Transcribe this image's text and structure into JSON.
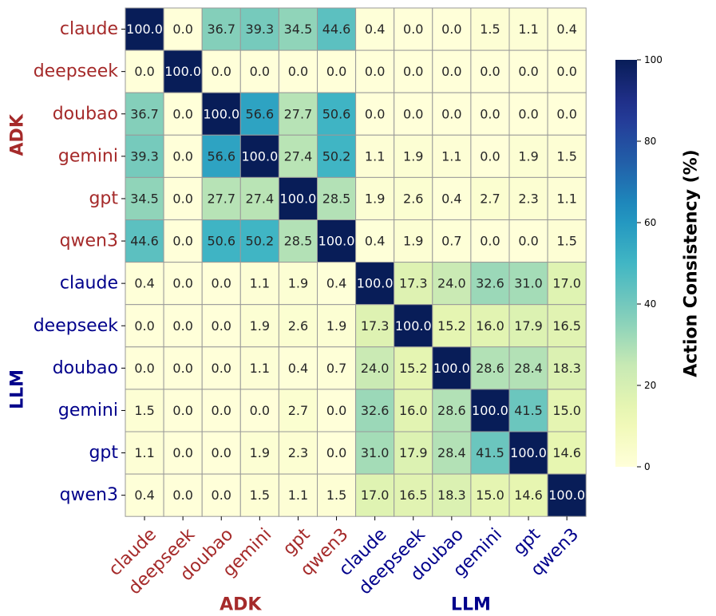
{
  "chart_data": {
    "type": "heatmap",
    "title": "",
    "row_labels": [
      "claude",
      "deepseek",
      "doubao",
      "gemini",
      "gpt",
      "qwen3",
      "claude",
      "deepseek",
      "doubao",
      "gemini",
      "gpt",
      "qwen3"
    ],
    "col_labels": [
      "claude",
      "deepseek",
      "doubao",
      "gemini",
      "gpt",
      "qwen3",
      "claude",
      "deepseek",
      "doubao",
      "gemini",
      "gpt",
      "qwen3"
    ],
    "groups": [
      {
        "name": "ADK",
        "start": 0,
        "end": 6,
        "color": "#a52a2a"
      },
      {
        "name": "LLM",
        "start": 6,
        "end": 12,
        "color": "#00008b"
      }
    ],
    "values": [
      [
        "100.0",
        "0.0",
        "36.7",
        "39.3",
        "34.5",
        "44.6",
        "0.4",
        "0.0",
        "0.0",
        "1.5",
        "1.1",
        "0.4"
      ],
      [
        "0.0",
        "100.0",
        "0.0",
        "0.0",
        "0.0",
        "0.0",
        "0.0",
        "0.0",
        "0.0",
        "0.0",
        "0.0",
        "0.0"
      ],
      [
        "36.7",
        "0.0",
        "100.0",
        "56.6",
        "27.7",
        "50.6",
        "0.0",
        "0.0",
        "0.0",
        "0.0",
        "0.0",
        "0.0"
      ],
      [
        "39.3",
        "0.0",
        "56.6",
        "100.0",
        "27.4",
        "50.2",
        "1.1",
        "1.9",
        "1.1",
        "0.0",
        "1.9",
        "1.5"
      ],
      [
        "34.5",
        "0.0",
        "27.7",
        "27.4",
        "100.0",
        "28.5",
        "1.9",
        "2.6",
        "0.4",
        "2.7",
        "2.3",
        "1.1"
      ],
      [
        "44.6",
        "0.0",
        "50.6",
        "50.2",
        "28.5",
        "100.0",
        "0.4",
        "1.9",
        "0.7",
        "0.0",
        "0.0",
        "1.5"
      ],
      [
        "0.4",
        "0.0",
        "0.0",
        "1.1",
        "1.9",
        "0.4",
        "100.0",
        "17.3",
        "24.0",
        "32.6",
        "31.0",
        "17.0"
      ],
      [
        "0.0",
        "0.0",
        "0.0",
        "1.9",
        "2.6",
        "1.9",
        "17.3",
        "100.0",
        "15.2",
        "16.0",
        "17.9",
        "16.5"
      ],
      [
        "0.0",
        "0.0",
        "0.0",
        "1.1",
        "0.4",
        "0.7",
        "24.0",
        "15.2",
        "100.0",
        "28.6",
        "28.4",
        "18.3"
      ],
      [
        "1.5",
        "0.0",
        "0.0",
        "0.0",
        "2.7",
        "0.0",
        "32.6",
        "16.0",
        "28.6",
        "100.0",
        "41.5",
        "15.0"
      ],
      [
        "1.1",
        "0.0",
        "0.0",
        "1.9",
        "2.3",
        "0.0",
        "31.0",
        "17.9",
        "28.4",
        "41.5",
        "100.0",
        "14.6"
      ],
      [
        "0.4",
        "0.0",
        "0.0",
        "1.5",
        "1.1",
        "1.5",
        "17.0",
        "16.5",
        "18.3",
        "15.0",
        "14.6",
        "100.0"
      ]
    ],
    "colorbar": {
      "label": "Action Consistency (%)",
      "range": [
        0,
        100
      ],
      "ticks": [
        "0",
        "20",
        "40",
        "60",
        "80",
        "100"
      ],
      "colormap": "YlGnBu"
    }
  }
}
